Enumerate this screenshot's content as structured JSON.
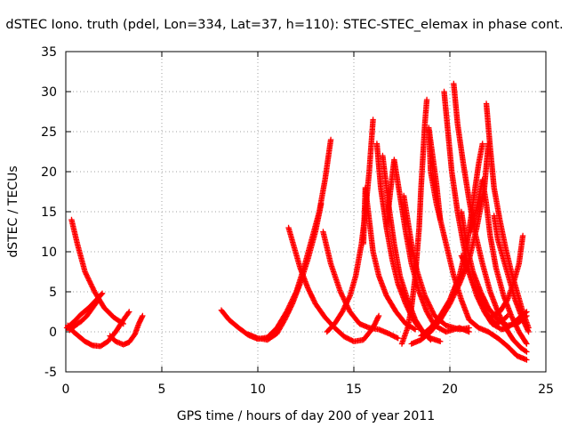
{
  "chart_data": {
    "type": "scatter",
    "title": "dSTEC Iono. truth (pdel, Lon=334, Lat=37, h=110): STEC-STEC_elemax in phase cont.",
    "xlabel": "GPS time / hours of day 200 of year 2011",
    "ylabel": "dSTEC  / TECUs",
    "xlim": [
      0,
      25
    ],
    "ylim": [
      -5,
      35
    ],
    "xticks": [
      0,
      5,
      10,
      15,
      20,
      25
    ],
    "yticks": [
      -5,
      0,
      5,
      10,
      15,
      20,
      25,
      30,
      35
    ],
    "grid": true,
    "marker": "+",
    "color": "#ff0000",
    "series": [
      {
        "values": [
          [
            0.3,
            14.0
          ],
          [
            0.6,
            11.0
          ],
          [
            1.0,
            7.5
          ],
          [
            1.5,
            5.0
          ],
          [
            2.0,
            3.0
          ],
          [
            2.5,
            1.8
          ],
          [
            3.0,
            1.0
          ]
        ]
      },
      {
        "values": [
          [
            0.05,
            0.5
          ],
          [
            0.4,
            1.2
          ],
          [
            0.8,
            2.2
          ],
          [
            1.2,
            3.0
          ],
          [
            1.6,
            4.0
          ],
          [
            1.9,
            4.8
          ]
        ]
      },
      {
        "values": [
          [
            0.1,
            0.8
          ],
          [
            0.4,
            0.0
          ],
          [
            0.7,
            -0.6
          ],
          [
            1.0,
            -1.2
          ],
          [
            1.4,
            -1.7
          ],
          [
            1.8,
            -1.8
          ],
          [
            2.2,
            -1.2
          ],
          [
            2.6,
            0.0
          ],
          [
            3.0,
            1.5
          ],
          [
            3.3,
            2.5
          ]
        ]
      },
      {
        "values": [
          [
            0.2,
            0.2
          ],
          [
            0.5,
            0.8
          ],
          [
            0.8,
            1.3
          ],
          [
            1.1,
            2.0
          ],
          [
            1.4,
            3.0
          ],
          [
            1.7,
            4.0
          ]
        ]
      },
      {
        "values": [
          [
            2.3,
            -0.5
          ],
          [
            2.6,
            -1.2
          ],
          [
            3.0,
            -1.6
          ],
          [
            3.3,
            -1.3
          ],
          [
            3.6,
            -0.3
          ],
          [
            3.8,
            1.0
          ],
          [
            4.0,
            2.0
          ]
        ]
      },
      {
        "values": [
          [
            8.1,
            2.7
          ],
          [
            8.5,
            1.5
          ],
          [
            9.0,
            0.5
          ],
          [
            9.5,
            -0.4
          ],
          [
            10.0,
            -0.9
          ],
          [
            10.5,
            -0.7
          ],
          [
            11.0,
            0.5
          ],
          [
            11.5,
            2.5
          ],
          [
            12.0,
            5.0
          ],
          [
            12.4,
            8.0
          ],
          [
            12.8,
            11.5
          ],
          [
            13.2,
            15.0
          ],
          [
            13.5,
            19.0
          ],
          [
            13.8,
            24.0
          ]
        ]
      },
      {
        "values": [
          [
            9.5,
            -0.3
          ],
          [
            10.0,
            -0.8
          ],
          [
            10.5,
            -1.0
          ],
          [
            11.0,
            -0.2
          ],
          [
            11.4,
            1.5
          ],
          [
            11.8,
            3.5
          ],
          [
            12.2,
            6.0
          ],
          [
            12.6,
            9.0
          ],
          [
            13.0,
            12.5
          ],
          [
            13.3,
            16.0
          ]
        ]
      },
      {
        "values": [
          [
            11.6,
            13.0
          ],
          [
            11.9,
            10.5
          ],
          [
            12.2,
            8.0
          ],
          [
            12.6,
            5.5
          ],
          [
            13.0,
            3.5
          ],
          [
            13.5,
            1.8
          ],
          [
            14.0,
            0.5
          ],
          [
            14.5,
            -0.6
          ],
          [
            15.0,
            -1.2
          ],
          [
            15.5,
            -1.0
          ],
          [
            16.0,
            0.5
          ],
          [
            16.3,
            2.0
          ]
        ]
      },
      {
        "values": [
          [
            13.4,
            12.5
          ],
          [
            13.8,
            8.5
          ],
          [
            14.3,
            5.0
          ],
          [
            14.8,
            2.5
          ],
          [
            15.3,
            1.0
          ],
          [
            15.8,
            0.5
          ],
          [
            16.3,
            0.3
          ],
          [
            16.8,
            -0.2
          ],
          [
            17.3,
            -0.8
          ]
        ]
      },
      {
        "values": [
          [
            13.6,
            0.0
          ],
          [
            14.0,
            1.0
          ],
          [
            14.4,
            2.5
          ],
          [
            14.8,
            4.5
          ],
          [
            15.1,
            7.0
          ],
          [
            15.4,
            11.0
          ],
          [
            15.6,
            15.0
          ],
          [
            15.8,
            20.0
          ],
          [
            16.0,
            26.5
          ]
        ]
      },
      {
        "values": [
          [
            15.5,
            11.0
          ],
          [
            15.6,
            18.0
          ],
          [
            15.8,
            14.0
          ],
          [
            16.0,
            10.0
          ],
          [
            16.3,
            7.0
          ],
          [
            16.7,
            4.5
          ],
          [
            17.2,
            2.5
          ],
          [
            17.7,
            1.0
          ],
          [
            18.2,
            0.3
          ]
        ]
      },
      {
        "values": [
          [
            16.2,
            23.5
          ],
          [
            16.4,
            18.0
          ],
          [
            16.7,
            13.0
          ],
          [
            17.0,
            9.0
          ],
          [
            17.3,
            6.0
          ],
          [
            17.7,
            3.5
          ],
          [
            18.1,
            1.5
          ],
          [
            18.5,
            0.2
          ],
          [
            19.0,
            -0.8
          ],
          [
            19.5,
            -1.2
          ]
        ]
      },
      {
        "values": [
          [
            16.5,
            22.0
          ],
          [
            16.8,
            16.0
          ],
          [
            17.1,
            11.0
          ],
          [
            17.4,
            7.0
          ],
          [
            17.8,
            4.0
          ],
          [
            18.2,
            1.5
          ],
          [
            18.6,
            0.0
          ],
          [
            19.0,
            -1.0
          ]
        ]
      },
      {
        "values": [
          [
            16.7,
            13.0
          ],
          [
            16.9,
            17.5
          ],
          [
            17.1,
            21.5
          ],
          [
            17.4,
            17.0
          ],
          [
            17.7,
            12.5
          ],
          [
            18.0,
            8.5
          ],
          [
            18.4,
            5.0
          ],
          [
            18.8,
            2.5
          ],
          [
            19.2,
            0.8
          ],
          [
            19.8,
            0.0
          ],
          [
            20.5,
            0.5
          ],
          [
            21.0,
            0.0
          ]
        ]
      },
      {
        "values": [
          [
            17.5,
            -1.5
          ],
          [
            17.8,
            0.5
          ],
          [
            18.0,
            3.0
          ],
          [
            18.2,
            7.0
          ],
          [
            18.4,
            13.0
          ],
          [
            18.5,
            18.0
          ],
          [
            18.6,
            22.0
          ],
          [
            18.7,
            26.0
          ],
          [
            18.8,
            29.0
          ]
        ]
      },
      {
        "values": [
          [
            17.6,
            17.0
          ],
          [
            17.8,
            14.0
          ],
          [
            18.0,
            11.0
          ],
          [
            18.3,
            7.5
          ],
          [
            18.7,
            4.5
          ],
          [
            19.2,
            2.0
          ],
          [
            19.8,
            0.8
          ],
          [
            20.5,
            0.3
          ],
          [
            21.0,
            0.5
          ]
        ]
      },
      {
        "values": [
          [
            18.0,
            -1.5
          ],
          [
            18.5,
            -1.0
          ],
          [
            19.0,
            0.0
          ],
          [
            19.5,
            1.5
          ],
          [
            20.0,
            3.5
          ],
          [
            20.5,
            6.0
          ],
          [
            21.0,
            9.0
          ],
          [
            21.4,
            13.0
          ],
          [
            21.8,
            18.0
          ],
          [
            22.0,
            23.5
          ]
        ]
      },
      {
        "values": [
          [
            18.5,
            -0.5
          ],
          [
            19.0,
            0.5
          ],
          [
            19.5,
            2.0
          ],
          [
            20.0,
            4.0
          ],
          [
            20.5,
            7.0
          ],
          [
            20.9,
            11.0
          ],
          [
            21.2,
            16.0
          ],
          [
            21.5,
            21.0
          ],
          [
            21.7,
            23.5
          ]
        ]
      },
      {
        "values": [
          [
            19.5,
            14.0
          ],
          [
            19.3,
            18.5
          ],
          [
            19.1,
            22.0
          ],
          [
            18.9,
            25.5
          ],
          [
            19.0,
            20.0
          ],
          [
            19.3,
            16.0
          ],
          [
            19.8,
            11.0
          ],
          [
            20.2,
            7.0
          ],
          [
            20.6,
            4.0
          ],
          [
            21.0,
            1.5
          ],
          [
            21.5,
            0.5
          ],
          [
            22.0,
            0.0
          ],
          [
            22.5,
            -0.8
          ],
          [
            23.0,
            -1.8
          ],
          [
            23.5,
            -3.0
          ],
          [
            24.0,
            -3.5
          ]
        ]
      },
      {
        "values": [
          [
            19.7,
            30.0
          ],
          [
            19.9,
            25.0
          ],
          [
            20.1,
            20.0
          ],
          [
            20.4,
            15.0
          ],
          [
            20.7,
            11.0
          ],
          [
            21.0,
            7.5
          ],
          [
            21.4,
            4.5
          ],
          [
            21.8,
            2.5
          ],
          [
            22.2,
            1.0
          ],
          [
            22.7,
            0.3
          ],
          [
            23.0,
            0.5
          ],
          [
            23.5,
            1.5
          ],
          [
            24.0,
            2.5
          ]
        ]
      },
      {
        "values": [
          [
            20.2,
            31.0
          ],
          [
            20.4,
            26.0
          ],
          [
            20.7,
            21.0
          ],
          [
            21.0,
            16.5
          ],
          [
            21.3,
            12.5
          ],
          [
            21.7,
            8.5
          ],
          [
            22.1,
            5.0
          ],
          [
            22.5,
            2.5
          ],
          [
            22.9,
            0.5
          ],
          [
            23.3,
            -1.0
          ],
          [
            23.7,
            -2.0
          ],
          [
            24.0,
            -2.5
          ]
        ]
      },
      {
        "values": [
          [
            21.1,
            12.5
          ],
          [
            21.4,
            15.5
          ],
          [
            21.7,
            19.0
          ],
          [
            21.9,
            16.0
          ],
          [
            22.1,
            12.0
          ],
          [
            22.4,
            8.0
          ],
          [
            22.8,
            4.5
          ],
          [
            23.2,
            2.0
          ],
          [
            23.6,
            0.0
          ],
          [
            24.0,
            -1.5
          ]
        ]
      },
      {
        "values": [
          [
            20.6,
            15.0
          ],
          [
            20.9,
            10.5
          ],
          [
            21.2,
            7.5
          ],
          [
            21.6,
            5.0
          ],
          [
            22.0,
            3.0
          ],
          [
            22.5,
            1.5
          ],
          [
            23.0,
            0.8
          ],
          [
            23.5,
            1.0
          ],
          [
            24.0,
            2.0
          ]
        ]
      },
      {
        "values": [
          [
            21.9,
            28.5
          ],
          [
            22.1,
            23.0
          ],
          [
            22.3,
            18.0
          ],
          [
            22.6,
            14.0
          ],
          [
            22.9,
            10.5
          ],
          [
            23.2,
            7.5
          ],
          [
            23.5,
            5.0
          ],
          [
            23.8,
            2.5
          ],
          [
            24.1,
            0.5
          ]
        ]
      },
      {
        "values": [
          [
            22.3,
            14.5
          ],
          [
            22.5,
            11.5
          ],
          [
            22.8,
            9.0
          ],
          [
            23.1,
            6.5
          ],
          [
            23.4,
            4.0
          ],
          [
            23.8,
            1.5
          ],
          [
            24.1,
            0.0
          ]
        ]
      },
      {
        "values": [
          [
            22.2,
            2.0
          ],
          [
            22.6,
            2.5
          ],
          [
            23.0,
            4.0
          ],
          [
            23.3,
            6.0
          ],
          [
            23.6,
            8.5
          ],
          [
            23.8,
            12.0
          ]
        ]
      },
      {
        "values": [
          [
            20.6,
            9.5
          ],
          [
            20.9,
            8.0
          ],
          [
            21.2,
            6.0
          ],
          [
            21.6,
            4.0
          ],
          [
            22.0,
            2.0
          ],
          [
            22.4,
            1.0
          ],
          [
            22.8,
            1.5
          ],
          [
            23.0,
            2.0
          ]
        ]
      }
    ]
  }
}
